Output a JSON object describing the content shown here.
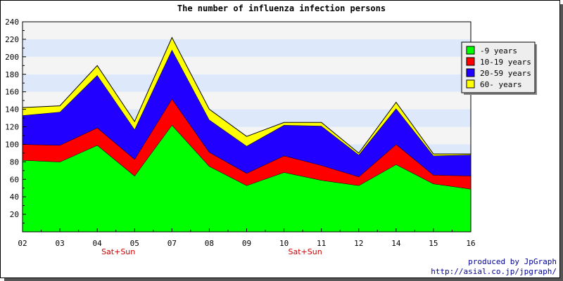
{
  "chart_data": {
    "type": "area",
    "stacked": true,
    "title": "The number of influenza infection persons",
    "categories": [
      "02",
      "03",
      "04",
      "05",
      "07",
      "08",
      "09",
      "10",
      "11",
      "12",
      "14",
      "15",
      "16"
    ],
    "category_notes": [
      {
        "category": "04",
        "text": "Sat+Sun"
      },
      {
        "category": "10",
        "text": "Sat+Sun"
      }
    ],
    "ylim": [
      0,
      240
    ],
    "yticks": [
      20,
      40,
      60,
      80,
      100,
      120,
      140,
      160,
      180,
      200,
      220,
      240
    ],
    "grid": true,
    "legend_position": "top-right",
    "series": [
      {
        "name": "-9 years",
        "color": "#00ff00",
        "values": [
          82,
          80,
          99,
          64,
          122,
          75,
          53,
          68,
          59,
          53,
          77,
          55,
          49
        ]
      },
      {
        "name": "10-19 years",
        "color": "#ff0000",
        "values": [
          18,
          19,
          20,
          19,
          30,
          16,
          14,
          19,
          17,
          10,
          23,
          10,
          15
        ]
      },
      {
        "name": "20-59 years",
        "color": "#2200ff",
        "values": [
          33,
          38,
          60,
          34,
          56,
          37,
          31,
          35,
          45,
          25,
          41,
          22,
          24
        ]
      },
      {
        "name": "60- years",
        "color": "#ffff00",
        "values": [
          9,
          7,
          11,
          9,
          14,
          12,
          11,
          3,
          4,
          2,
          7,
          2,
          1
        ]
      }
    ]
  },
  "footer": {
    "line1": "produced by JpGraph",
    "line2": "http://asial.co.jp/jpgraph/"
  }
}
